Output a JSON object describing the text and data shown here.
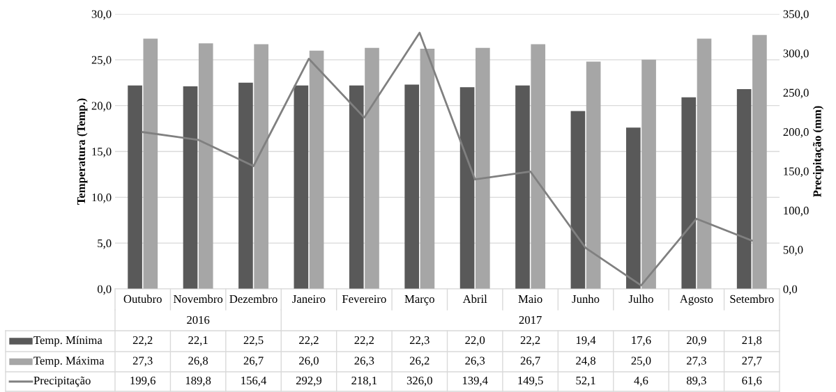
{
  "chart_data": {
    "type": "bar",
    "ylabel": "Temperatura (Temp.)",
    "y2label": "Precipitação (mm)",
    "categories": [
      "Outubro",
      "Novembro",
      "Dezembro",
      "Janeiro",
      "Fevereiro",
      "Março",
      "Abril",
      "Maio",
      "Junho",
      "Julho",
      "Agosto",
      "Setembro"
    ],
    "series": [
      {
        "name": "Temp. Mínima",
        "color": "#595959",
        "values": [
          22.2,
          22.1,
          22.5,
          22.2,
          22.2,
          22.3,
          22.0,
          22.2,
          19.4,
          17.6,
          20.9,
          21.8
        ],
        "value_labels": [
          "22,2",
          "22,1",
          "22,5",
          "22,2",
          "22,2",
          "22,3",
          "22,0",
          "22,2",
          "19,4",
          "17,6",
          "20,9",
          "21,8"
        ]
      },
      {
        "name": "Temp. Máxima",
        "color": "#a6a6a6",
        "values": [
          27.3,
          26.8,
          26.7,
          26.0,
          26.3,
          26.2,
          26.3,
          26.7,
          24.8,
          25.0,
          27.3,
          27.7
        ],
        "value_labels": [
          "27,3",
          "26,8",
          "26,7",
          "26,0",
          "26,3",
          "26,2",
          "26,3",
          "26,7",
          "24,8",
          "25,0",
          "27,3",
          "27,7"
        ]
      },
      {
        "name": "Precipitação",
        "type": "line",
        "axis": "y2",
        "color": "#808080",
        "values": [
          199.6,
          189.8,
          156.4,
          292.9,
          218.1,
          326.0,
          139.4,
          149.5,
          52.1,
          4.6,
          89.3,
          61.6
        ],
        "value_labels": [
          "199,6",
          "189,8",
          "156,4",
          "292,9",
          "218,1",
          "326,0",
          "139,4",
          "149,5",
          "52,1",
          "4,6",
          "89,3",
          "61,6"
        ]
      }
    ],
    "ylim": [
      0,
      30
    ],
    "yticks": [
      {
        "value": 0,
        "label": "0,0"
      },
      {
        "value": 5,
        "label": "5,0"
      },
      {
        "value": 10,
        "label": "10,0"
      },
      {
        "value": 15,
        "label": "15,0"
      },
      {
        "value": 20,
        "label": "20,0"
      },
      {
        "value": 25,
        "label": "25,0"
      },
      {
        "value": 30,
        "label": "30,0"
      }
    ],
    "y2lim": [
      0,
      350
    ],
    "y2ticks": [
      {
        "value": 0,
        "label": "0,0"
      },
      {
        "value": 50,
        "label": "50,0"
      },
      {
        "value": 100,
        "label": "100,0"
      },
      {
        "value": 150,
        "label": "150,0"
      },
      {
        "value": 200,
        "label": "200,0"
      },
      {
        "value": 250,
        "label": "250,0"
      },
      {
        "value": 300,
        "label": "300,0"
      },
      {
        "value": 350,
        "label": "350,0"
      }
    ],
    "annotations": [
      "2016",
      "2017"
    ],
    "grid": "y",
    "legend": "bottom",
    "marker": "none",
    "line_style": "solid"
  }
}
